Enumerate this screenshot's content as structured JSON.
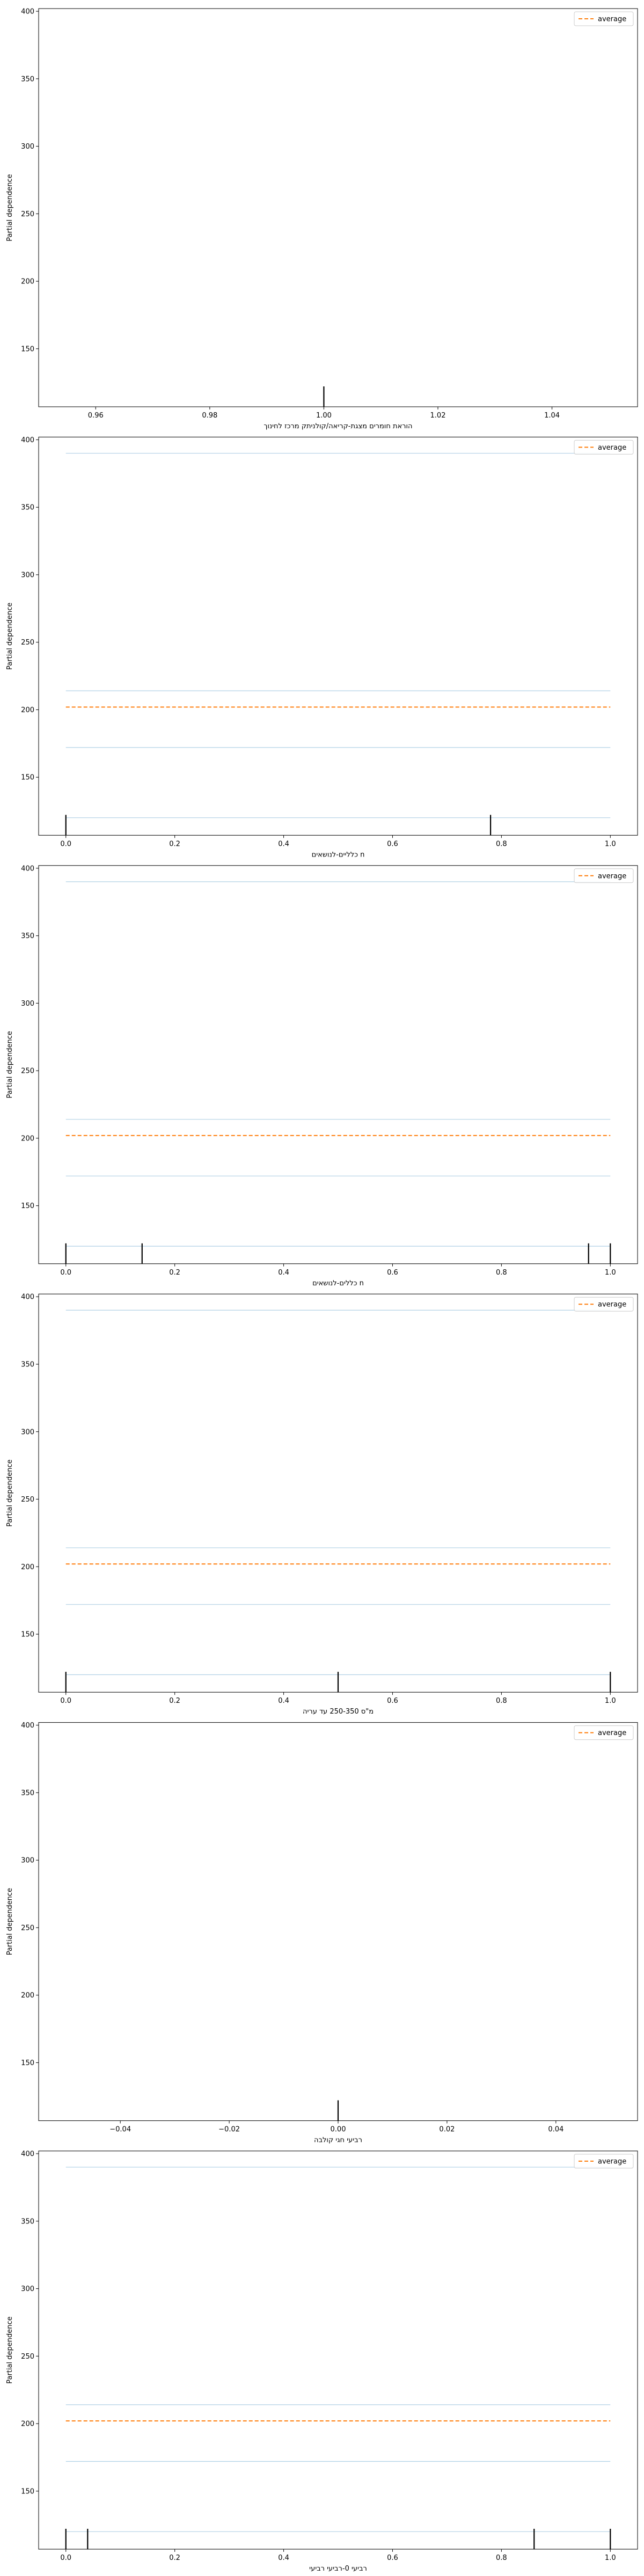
{
  "figure": {
    "legend_label": "average",
    "ylabel": "Partial dependence"
  },
  "colors": {
    "average": "#ff7f0e",
    "ice": "#1f77b4",
    "axis": "#000000",
    "legend_border": "#cccccc"
  },
  "chart_data": [
    {
      "type": "line",
      "xlabel": "הוראת חומרים מצגת-קריאה/קולניתק מרכז לחינוך",
      "xlim": [
        0.95,
        1.055
      ],
      "xticks": [
        0.96,
        0.98,
        1.0,
        1.02,
        1.04
      ],
      "xtick_labels": [
        "0.96",
        "0.98",
        "1.00",
        "1.02",
        "1.04"
      ],
      "ylim": [
        107,
        402
      ],
      "yticks": [
        150,
        200,
        250,
        300,
        350,
        400
      ],
      "ytick_labels": [
        "150",
        "200",
        "250",
        "300",
        "350",
        "400"
      ],
      "legend": "top-right",
      "series": [],
      "rug": [
        1.0
      ]
    },
    {
      "type": "line",
      "xlabel": "כלליים-לנושאים n",
      "xlim": [
        -0.05,
        1.05
      ],
      "xticks": [
        0.0,
        0.2,
        0.4,
        0.6,
        0.8,
        1.0
      ],
      "xtick_labels": [
        "0.0",
        "0.2",
        "0.4",
        "0.6",
        "0.8",
        "1.0"
      ],
      "ylim": [
        107,
        402
      ],
      "yticks": [
        150,
        200,
        250,
        300,
        350,
        400
      ],
      "ytick_labels": [
        "150",
        "200",
        "250",
        "300",
        "350",
        "400"
      ],
      "legend": "top-right",
      "series": [
        {
          "role": "ice",
          "x": [
            0.0,
            1.0
          ],
          "y": [
            390,
            390
          ]
        },
        {
          "role": "ice",
          "x": [
            0.0,
            1.0
          ],
          "y": [
            214,
            214
          ]
        },
        {
          "role": "ice",
          "x": [
            0.0,
            1.0
          ],
          "y": [
            172,
            172
          ]
        },
        {
          "role": "ice",
          "x": [
            0.0,
            1.0
          ],
          "y": [
            120,
            120
          ]
        },
        {
          "role": "average",
          "x": [
            0.0,
            1.0
          ],
          "y": [
            202,
            202
          ]
        }
      ],
      "rug": [
        0.0,
        0.78
      ]
    },
    {
      "type": "line",
      "xlabel": "כללים-לנושאים n",
      "xlim": [
        -0.05,
        1.05
      ],
      "xticks": [
        0.0,
        0.2,
        0.4,
        0.6,
        0.8,
        1.0
      ],
      "xtick_labels": [
        "0.0",
        "0.2",
        "0.4",
        "0.6",
        "0.8",
        "1.0"
      ],
      "ylim": [
        107,
        402
      ],
      "yticks": [
        150,
        200,
        250,
        300,
        350,
        400
      ],
      "ytick_labels": [
        "150",
        "200",
        "250",
        "300",
        "350",
        "400"
      ],
      "legend": "top-right",
      "series": [
        {
          "role": "ice",
          "x": [
            0.0,
            1.0
          ],
          "y": [
            390,
            390
          ]
        },
        {
          "role": "ice",
          "x": [
            0.0,
            1.0
          ],
          "y": [
            214,
            214
          ]
        },
        {
          "role": "ice",
          "x": [
            0.0,
            1.0
          ],
          "y": [
            172,
            172
          ]
        },
        {
          "role": "ice",
          "x": [
            0.0,
            1.0
          ],
          "y": [
            120,
            120
          ]
        },
        {
          "role": "average",
          "x": [
            0.0,
            1.0
          ],
          "y": [
            202,
            202
          ]
        }
      ],
      "rug": [
        0.0,
        0.14,
        0.96,
        1.0
      ]
    },
    {
      "type": "line",
      "xlabel": "מ\"ס 250-350 עד עריה",
      "xlim": [
        -0.05,
        1.05
      ],
      "xticks": [
        0.0,
        0.2,
        0.4,
        0.6,
        0.8,
        1.0
      ],
      "xtick_labels": [
        "0.0",
        "0.2",
        "0.4",
        "0.6",
        "0.8",
        "1.0"
      ],
      "ylim": [
        107,
        402
      ],
      "yticks": [
        150,
        200,
        250,
        300,
        350,
        400
      ],
      "ytick_labels": [
        "150",
        "200",
        "250",
        "300",
        "350",
        "400"
      ],
      "legend": "top-right",
      "series": [
        {
          "role": "ice",
          "x": [
            0.0,
            1.0
          ],
          "y": [
            390,
            390
          ]
        },
        {
          "role": "ice",
          "x": [
            0.0,
            1.0
          ],
          "y": [
            214,
            214
          ]
        },
        {
          "role": "ice",
          "x": [
            0.0,
            1.0
          ],
          "y": [
            172,
            172
          ]
        },
        {
          "role": "ice",
          "x": [
            0.0,
            1.0
          ],
          "y": [
            120,
            120
          ]
        },
        {
          "role": "average",
          "x": [
            0.0,
            1.0
          ],
          "y": [
            202,
            202
          ]
        }
      ],
      "rug": [
        0.0,
        0.5,
        1.0
      ]
    },
    {
      "type": "line",
      "xlabel": "רביעי חגי קולבה",
      "xlim": [
        -0.055,
        0.055
      ],
      "xticks": [
        -0.04,
        -0.02,
        0.0,
        0.02,
        0.04
      ],
      "xtick_labels": [
        "−0.04",
        "−0.02",
        "0.00",
        "0.02",
        "0.04"
      ],
      "ylim": [
        107,
        402
      ],
      "yticks": [
        150,
        200,
        250,
        300,
        350,
        400
      ],
      "ytick_labels": [
        "150",
        "200",
        "250",
        "300",
        "350",
        "400"
      ],
      "legend": "top-right",
      "series": [],
      "rug": [
        0.0
      ]
    },
    {
      "type": "line",
      "xlabel": "רביעי 0-רביעי רביעי",
      "xlim": [
        -0.05,
        1.05
      ],
      "xticks": [
        0.0,
        0.2,
        0.4,
        0.6,
        0.8,
        1.0
      ],
      "xtick_labels": [
        "0.0",
        "0.2",
        "0.4",
        "0.6",
        "0.8",
        "1.0"
      ],
      "ylim": [
        107,
        402
      ],
      "yticks": [
        150,
        200,
        250,
        300,
        350,
        400
      ],
      "ytick_labels": [
        "150",
        "200",
        "250",
        "300",
        "350",
        "400"
      ],
      "legend": "top-right",
      "series": [
        {
          "role": "ice",
          "x": [
            0.0,
            1.0
          ],
          "y": [
            390,
            390
          ]
        },
        {
          "role": "ice",
          "x": [
            0.0,
            1.0
          ],
          "y": [
            214,
            214
          ]
        },
        {
          "role": "ice",
          "x": [
            0.0,
            1.0
          ],
          "y": [
            172,
            172
          ]
        },
        {
          "role": "ice",
          "x": [
            0.0,
            1.0
          ],
          "y": [
            120,
            120
          ]
        },
        {
          "role": "average",
          "x": [
            0.0,
            1.0
          ],
          "y": [
            202,
            202
          ]
        }
      ],
      "rug": [
        0.0,
        0.04,
        0.86,
        1.0
      ]
    }
  ]
}
